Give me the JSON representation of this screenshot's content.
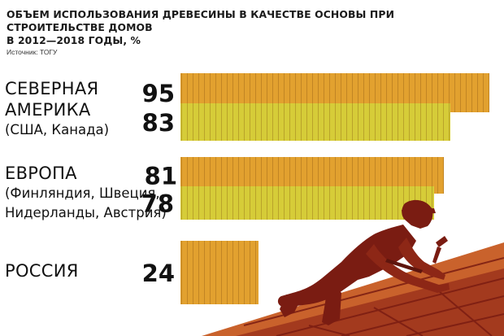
{
  "header": {
    "title_line1": "ОБЪЕМ ИСПОЛЬЗОВАНИЯ ДРЕВЕСИНЫ В КАЧЕСТВЕ ОСНОВЫ ПРИ СТРОИТЕЛЬСТВЕ ДОМОВ",
    "title_line2": "В 2012—2018 ГОДЫ, %",
    "source": "Источник: ТОГУ"
  },
  "regions": [
    {
      "name_lines": [
        "СЕВЕРНАЯ",
        "АМЕРИКА"
      ],
      "sub_lines": [
        "(США, Канада)"
      ]
    },
    {
      "name_lines": [
        "ЕВРОПА"
      ],
      "sub_lines": [
        "(Финляндия, Швеция,",
        "Нидерланды, Австрия)"
      ]
    },
    {
      "name_lines": [
        "РОССИЯ"
      ],
      "sub_lines": []
    }
  ],
  "colors": {
    "bar_orange": "#e2a12f",
    "bar_yellow": "#d6cc38",
    "silhouette_dark": "#7a1c12",
    "silhouette_mid": "#a33a1e",
    "silhouette_light": "#c9622c"
  },
  "chart_data": {
    "type": "bar",
    "orientation": "horizontal",
    "title": "ОБЪЕМ ИСПОЛЬЗОВАНИЯ ДРЕВЕСИНЫ В КАЧЕСТВЕ ОСНОВЫ ПРИ СТРОИТЕЛЬСТВЕ ДОМОВ В 2012—2018 ГОДЫ, %",
    "unit": "%",
    "xlim": [
      0,
      100
    ],
    "bars": [
      {
        "group": "СЕВЕРНАЯ АМЕРИКА (США, Канада)",
        "value": 95,
        "color": "#e2a12f"
      },
      {
        "group": "СЕВЕРНАЯ АМЕРИКА (США, Канада)",
        "value": 83,
        "color": "#d6cc38"
      },
      {
        "group": "ЕВРОПА (Финляндия, Швеция, Нидерланды, Австрия)",
        "value": 81,
        "color": "#e2a12f"
      },
      {
        "group": "ЕВРОПА (Финляндия, Швеция, Нидерланды, Австрия)",
        "value": 78,
        "color": "#d6cc38"
      },
      {
        "group": "РОССИЯ",
        "value": 24,
        "color": "#e2a12f"
      }
    ]
  }
}
